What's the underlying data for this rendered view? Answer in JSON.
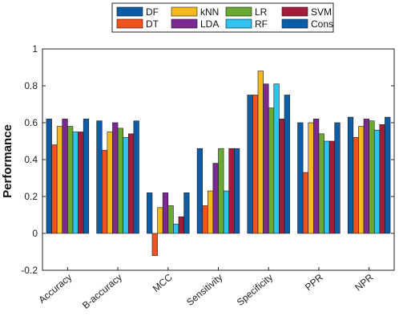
{
  "chart_data": {
    "type": "bar",
    "title": "",
    "xlabel": "",
    "ylabel": "Performance",
    "ylim": [
      -0.2,
      1
    ],
    "yticks": [
      "-0.2",
      "0",
      "0.2",
      "0.4",
      "0.6",
      "0.8",
      "1"
    ],
    "grid": false,
    "legend_position": "top",
    "categories": [
      "Accuracy",
      "B-accuracy",
      "MCC",
      "Sensitivity",
      "Specificity",
      "PPR",
      "NPR"
    ],
    "series": [
      {
        "name": "DF",
        "color": "#0d5da6",
        "values": [
          0.62,
          0.61,
          0.22,
          0.46,
          0.75,
          0.6,
          0.63
        ]
      },
      {
        "name": "DT",
        "color": "#f0531f",
        "values": [
          0.48,
          0.45,
          -0.12,
          0.15,
          0.75,
          0.33,
          0.52
        ]
      },
      {
        "name": "kNN",
        "color": "#f5b91d",
        "values": [
          0.58,
          0.55,
          0.14,
          0.23,
          0.88,
          0.6,
          0.58
        ]
      },
      {
        "name": "LDA",
        "color": "#7b2a8f",
        "values": [
          0.62,
          0.6,
          0.22,
          0.38,
          0.81,
          0.62,
          0.62
        ]
      },
      {
        "name": "LR",
        "color": "#6aaa33",
        "values": [
          0.58,
          0.57,
          0.15,
          0.46,
          0.68,
          0.54,
          0.61
        ]
      },
      {
        "name": "RF",
        "color": "#2ec4ee",
        "values": [
          0.55,
          0.52,
          0.05,
          0.23,
          0.81,
          0.5,
          0.56
        ]
      },
      {
        "name": "SVM",
        "color": "#a31c3a",
        "values": [
          0.55,
          0.54,
          0.09,
          0.46,
          0.62,
          0.5,
          0.59
        ]
      },
      {
        "name": "Cons",
        "color": "#0d5da6",
        "values": [
          0.62,
          0.61,
          0.22,
          0.46,
          0.75,
          0.6,
          0.63
        ]
      }
    ]
  }
}
